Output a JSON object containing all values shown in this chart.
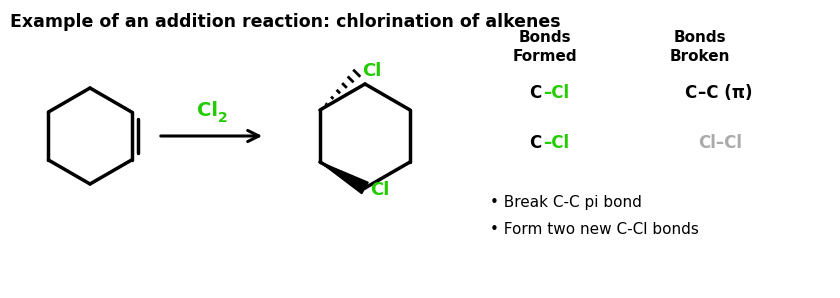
{
  "title": "Example of an addition reaction: chlorination of alkenes",
  "title_fontsize": 12.5,
  "title_fontweight": "bold",
  "background_color": "#ffffff",
  "green_color": "#22cc00",
  "black_color": "#000000",
  "gray_color": "#aaaaaa",
  "bonds_formed_header": "Bonds\nFormed",
  "bonds_broken_header": "Bonds\nBroken",
  "bullet1": "• Break C-C pi bond",
  "bullet2": "• Form two new C-Cl bonds"
}
